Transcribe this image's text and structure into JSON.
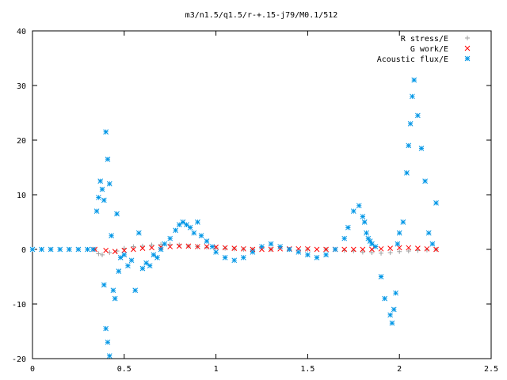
{
  "chart_data": {
    "type": "scatter",
    "title": "m3/n1.5/q1.5/r-+.15-j79/M0.1/512",
    "xlabel": "",
    "ylabel": "",
    "xlim": [
      0,
      2.5
    ],
    "ylim": [
      -20,
      40
    ],
    "xticks": [
      "0",
      "0.5",
      "1",
      "1.5",
      "2",
      "2.5"
    ],
    "yticks": [
      "-20",
      "-10",
      "0",
      "10",
      "20",
      "30",
      "40"
    ],
    "xtick_values": [
      0,
      0.5,
      1,
      1.5,
      2,
      2.5
    ],
    "ytick_values": [
      -20,
      -10,
      0,
      10,
      20,
      30,
      40
    ],
    "grid": false,
    "legend_position": "top-right",
    "series": [
      {
        "name": "R stress/E",
        "marker": "plus",
        "color": "#a0a0a0",
        "x": [
          0.0,
          0.1,
          0.2,
          0.3,
          0.34,
          0.36,
          0.38,
          0.42,
          0.46,
          0.5,
          0.55,
          0.6,
          0.65,
          0.7,
          0.75,
          0.8,
          0.85,
          0.9,
          0.95,
          1.0,
          1.05,
          1.1,
          1.15,
          1.2,
          1.3,
          1.4,
          1.5,
          1.6,
          1.7,
          1.75,
          1.8,
          1.85,
          1.9,
          1.95,
          2.0,
          2.05,
          2.1,
          2.15,
          2.2
        ],
        "y": [
          0.0,
          0.0,
          0.0,
          0.0,
          0.0,
          -0.8,
          -1.0,
          -0.6,
          -0.3,
          0.2,
          0.5,
          0.6,
          0.8,
          0.9,
          0.9,
          0.8,
          0.6,
          0.5,
          0.4,
          0.3,
          0.2,
          0.1,
          0.0,
          0.0,
          0.0,
          0.0,
          0.0,
          0.0,
          -0.2,
          -0.3,
          -0.5,
          -0.6,
          -0.7,
          -0.6,
          -0.4,
          -0.3,
          -0.2,
          -0.1,
          0.0
        ]
      },
      {
        "name": "G work/E",
        "marker": "cross",
        "color": "#ff0000",
        "x": [
          0.34,
          0.4,
          0.45,
          0.5,
          0.55,
          0.6,
          0.65,
          0.7,
          0.75,
          0.8,
          0.85,
          0.9,
          0.95,
          1.0,
          1.05,
          1.1,
          1.15,
          1.2,
          1.25,
          1.3,
          1.35,
          1.4,
          1.45,
          1.5,
          1.55,
          1.6,
          1.65,
          1.7,
          1.75,
          1.8,
          1.85,
          1.9,
          1.95,
          2.0,
          2.05,
          2.1,
          2.15,
          2.2
        ],
        "y": [
          0.0,
          -0.2,
          -0.4,
          -0.2,
          0.0,
          0.2,
          0.3,
          0.4,
          0.5,
          0.6,
          0.6,
          0.5,
          0.5,
          0.4,
          0.3,
          0.2,
          0.1,
          0.0,
          0.0,
          0.0,
          0.1,
          0.1,
          0.1,
          0.1,
          0.0,
          0.0,
          0.0,
          0.0,
          0.0,
          0.0,
          0.0,
          0.1,
          0.2,
          0.3,
          0.3,
          0.2,
          0.1,
          0.0
        ]
      },
      {
        "name": "Acoustic flux/E",
        "marker": "star",
        "color": "#0096e6",
        "x": [
          0.0,
          0.05,
          0.1,
          0.15,
          0.2,
          0.25,
          0.3,
          0.33,
          0.35,
          0.36,
          0.37,
          0.38,
          0.39,
          0.39,
          0.4,
          0.4,
          0.41,
          0.41,
          0.42,
          0.42,
          0.43,
          0.44,
          0.45,
          0.46,
          0.47,
          0.48,
          0.5,
          0.52,
          0.54,
          0.56,
          0.58,
          0.6,
          0.62,
          0.64,
          0.66,
          0.68,
          0.7,
          0.72,
          0.75,
          0.78,
          0.8,
          0.82,
          0.84,
          0.86,
          0.88,
          0.9,
          0.92,
          0.95,
          0.98,
          1.0,
          1.05,
          1.1,
          1.15,
          1.2,
          1.25,
          1.3,
          1.35,
          1.4,
          1.45,
          1.5,
          1.55,
          1.6,
          1.65,
          1.7,
          1.72,
          1.75,
          1.78,
          1.8,
          1.81,
          1.82,
          1.83,
          1.84,
          1.85,
          1.87,
          1.9,
          1.92,
          1.95,
          1.96,
          1.97,
          1.98,
          1.99,
          2.0,
          2.02,
          2.04,
          2.05,
          2.06,
          2.07,
          2.08,
          2.1,
          2.12,
          2.14,
          2.16,
          2.18,
          2.2
        ],
        "y": [
          0.0,
          0.0,
          0.0,
          0.0,
          0.0,
          0.0,
          0.0,
          0.0,
          7.0,
          9.5,
          12.5,
          11.0,
          9.0,
          -6.5,
          21.5,
          -14.5,
          16.5,
          -17.0,
          12.0,
          -19.5,
          2.5,
          -7.5,
          -9.0,
          6.5,
          -4.0,
          -1.5,
          -1.0,
          -3.0,
          -2.0,
          -7.5,
          3.0,
          -3.5,
          -2.5,
          -3.0,
          -1.0,
          -1.5,
          0.0,
          1.0,
          2.0,
          3.5,
          4.5,
          5.0,
          4.5,
          4.0,
          3.0,
          5.0,
          2.5,
          1.5,
          0.5,
          -0.5,
          -1.5,
          -2.0,
          -1.5,
          -0.5,
          0.5,
          1.0,
          0.5,
          0.0,
          -0.5,
          -1.0,
          -1.5,
          -1.0,
          0.0,
          2.0,
          4.0,
          7.0,
          8.0,
          6.0,
          5.0,
          3.0,
          2.0,
          1.5,
          1.0,
          0.5,
          -5.0,
          -9.0,
          -12.0,
          -13.5,
          -11.0,
          -8.0,
          1.0,
          3.0,
          5.0,
          14.0,
          19.0,
          23.0,
          28.0,
          31.0,
          24.5,
          18.5,
          12.5,
          3.0,
          1.0,
          8.5
        ]
      }
    ]
  }
}
